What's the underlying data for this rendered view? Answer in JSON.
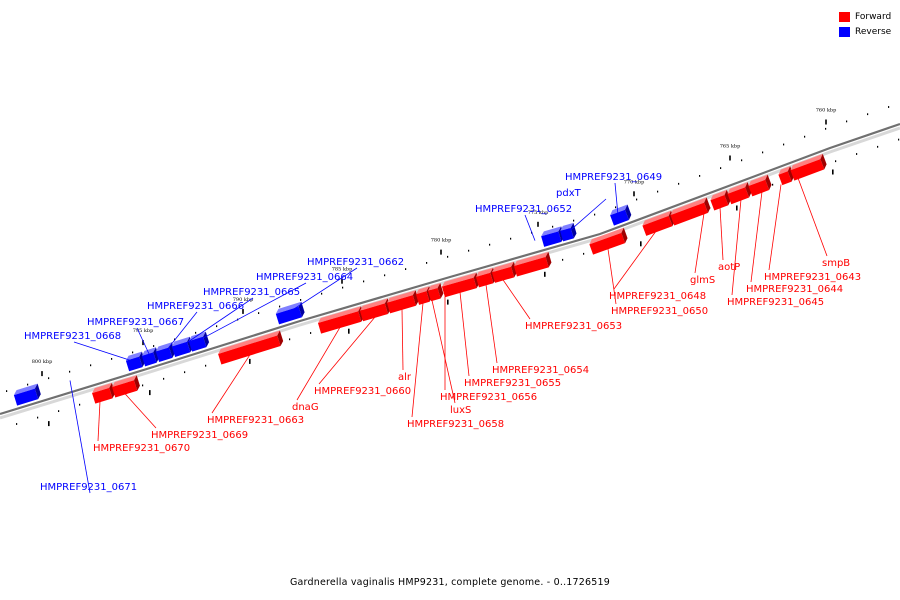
{
  "legend": {
    "forward_label": "Forward",
    "reverse_label": "Reverse",
    "forward_color": "#ff0000",
    "reverse_color": "#0000ff"
  },
  "caption": "Gardnerella vaginalis HMP9231, complete genome. - 0..1726519",
  "chart_data": {
    "type": "genome-map",
    "axis_ticks": [
      {
        "pos": 760000,
        "label": "760 kbp"
      },
      {
        "pos": 765000,
        "label": "765 kbp"
      },
      {
        "pos": 770000,
        "label": "770 kbp"
      },
      {
        "pos": 775000,
        "label": "775 kbp"
      },
      {
        "pos": 780000,
        "label": "780 kbp"
      },
      {
        "pos": 785000,
        "label": "785 kbp"
      },
      {
        "pos": 790000,
        "label": "790 kbp"
      },
      {
        "pos": 795000,
        "label": "795 kbp"
      },
      {
        "pos": 800000,
        "label": "800 kbp"
      }
    ],
    "genes": [
      {
        "name": "HMPREF9231_0671",
        "strand": "reverse"
      },
      {
        "name": "HMPREF9231_0670",
        "strand": "forward"
      },
      {
        "name": "HMPREF9231_0669",
        "strand": "forward"
      },
      {
        "name": "HMPREF9231_0668",
        "strand": "reverse"
      },
      {
        "name": "HMPREF9231_0667",
        "strand": "reverse"
      },
      {
        "name": "HMPREF9231_0666",
        "strand": "reverse"
      },
      {
        "name": "HMPREF9231_0665",
        "strand": "reverse"
      },
      {
        "name": "HMPREF9231_0664",
        "strand": "reverse"
      },
      {
        "name": "HMPREF9231_0663",
        "strand": "forward"
      },
      {
        "name": "HMPREF9231_0662",
        "strand": "reverse"
      },
      {
        "name": "dnaG",
        "strand": "forward"
      },
      {
        "name": "HMPREF9231_0660",
        "strand": "forward"
      },
      {
        "name": "alr",
        "strand": "forward"
      },
      {
        "name": "HMPREF9231_0658",
        "strand": "forward"
      },
      {
        "name": "luxS",
        "strand": "forward"
      },
      {
        "name": "HMPREF9231_0656",
        "strand": "forward"
      },
      {
        "name": "HMPREF9231_0655",
        "strand": "forward"
      },
      {
        "name": "HMPREF9231_0654",
        "strand": "forward"
      },
      {
        "name": "HMPREF9231_0653",
        "strand": "forward"
      },
      {
        "name": "HMPREF9231_0652",
        "strand": "reverse"
      },
      {
        "name": "pdxT",
        "strand": "reverse"
      },
      {
        "name": "HMPREF9231_0650",
        "strand": "forward"
      },
      {
        "name": "HMPREF9231_0649",
        "strand": "reverse"
      },
      {
        "name": "HMPREF9231_0648",
        "strand": "forward"
      },
      {
        "name": "glmS",
        "strand": "forward"
      },
      {
        "name": "aotP",
        "strand": "forward"
      },
      {
        "name": "HMPREF9231_0645",
        "strand": "forward"
      },
      {
        "name": "HMPREF9231_0644",
        "strand": "forward"
      },
      {
        "name": "HMPREF9231_0643",
        "strand": "forward"
      },
      {
        "name": "smpB",
        "strand": "forward"
      }
    ]
  }
}
